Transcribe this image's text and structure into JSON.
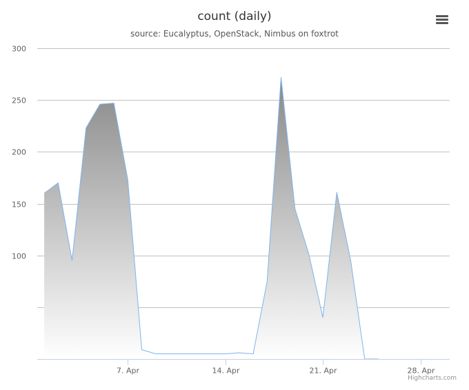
{
  "header": {
    "title": "count (daily)",
    "subtitle": "source: Eucalyptus, OpenStack, Nimbus on foxtrot"
  },
  "menu": {
    "icon": "hamburger-menu-icon"
  },
  "credits": "Highcharts.com",
  "colors": {
    "line": "#7cb5ec",
    "area_top": "#888888",
    "area_bottom": "#ffffff",
    "grid": "#c0c0c0",
    "axis": "#c0d0e0"
  },
  "chart_data": {
    "type": "area",
    "title": "count (daily)",
    "subtitle": "source: Eucalyptus, OpenStack, Nimbus on foxtrot",
    "xlabel": "",
    "ylabel": "",
    "ylim": [
      0,
      300
    ],
    "yticks": [
      0,
      50,
      100,
      150,
      200,
      250,
      300
    ],
    "ytick_labels": [
      "",
      "",
      "100",
      "150",
      "200",
      "250",
      "300"
    ],
    "xticks": [
      "2014-04-07",
      "2014-04-14",
      "2014-04-21",
      "2014-04-28"
    ],
    "xtick_labels": [
      "7. Apr",
      "14. Apr",
      "21. Apr",
      "28. Apr"
    ],
    "grid": true,
    "legend": false,
    "series": [
      {
        "x": [
          "2014-04-01",
          "2014-04-02",
          "2014-04-03",
          "2014-04-04",
          "2014-04-05",
          "2014-04-06",
          "2014-04-07",
          "2014-04-08",
          "2014-04-09",
          "2014-04-10",
          "2014-04-11",
          "2014-04-12",
          "2014-04-13",
          "2014-04-14",
          "2014-04-15",
          "2014-04-16",
          "2014-04-17",
          "2014-04-18",
          "2014-04-19",
          "2014-04-20",
          "2014-04-21",
          "2014-04-22",
          "2014-04-23",
          "2014-04-24",
          "2014-04-25"
        ],
        "values": [
          160,
          170,
          95,
          223,
          246,
          247,
          173,
          9,
          5,
          5,
          5,
          5,
          5,
          5,
          6,
          5,
          75,
          272,
          145,
          101,
          40,
          161,
          95,
          0,
          0
        ]
      }
    ]
  }
}
